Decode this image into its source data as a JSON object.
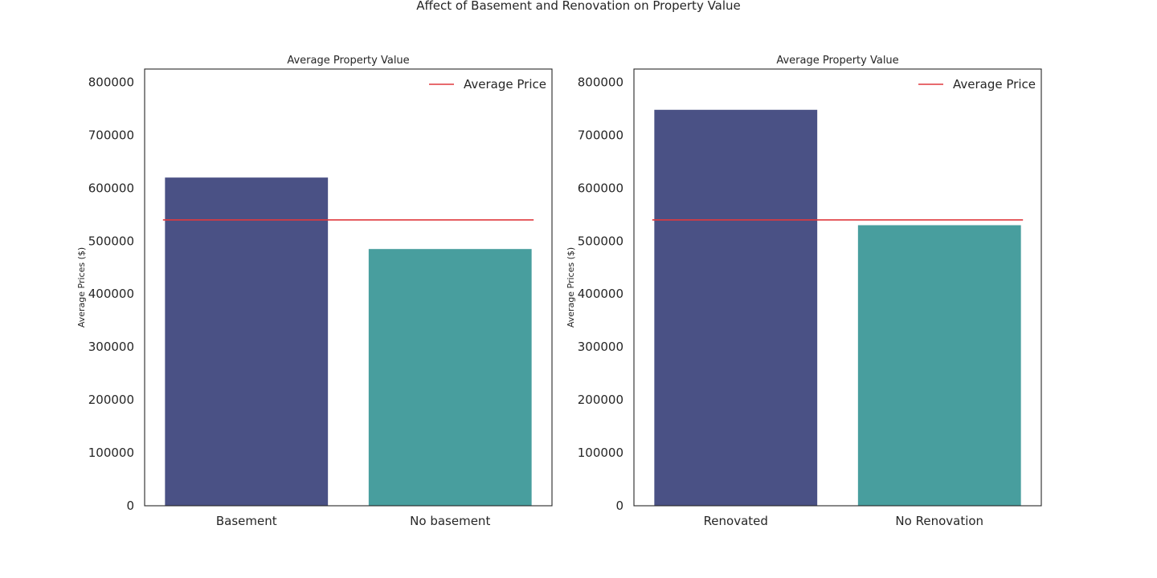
{
  "figure_title": "Affect of Basement and Renovation on Property Value",
  "chart_data": [
    {
      "type": "bar",
      "title": "Average Property Value",
      "xlabel": "",
      "ylabel": "Average Prices ($)",
      "categories": [
        "Basement",
        "No basement"
      ],
      "values": [
        620000,
        485000
      ],
      "bar_colors": [
        "#4a5185",
        "#489e9e"
      ],
      "reference_line": {
        "label": "Average Price",
        "value": 540000,
        "color": "#e0393e"
      },
      "ylim": [
        0,
        825000
      ],
      "yticks": [
        0,
        100000,
        200000,
        300000,
        400000,
        500000,
        600000,
        700000,
        800000
      ],
      "ytick_labels": [
        "0",
        "100000",
        "200000",
        "300000",
        "400000",
        "500000",
        "600000",
        "700000",
        "800000"
      ],
      "grid": false,
      "legend_position": "top-right"
    },
    {
      "type": "bar",
      "title": "Average Property Value",
      "xlabel": "",
      "ylabel": "Average Prices ($)",
      "categories": [
        "Renovated",
        "No Renovation"
      ],
      "values": [
        748000,
        530000
      ],
      "bar_colors": [
        "#4a5185",
        "#489e9e"
      ],
      "reference_line": {
        "label": "Average Price",
        "value": 540000,
        "color": "#e0393e"
      },
      "ylim": [
        0,
        825000
      ],
      "yticks": [
        0,
        100000,
        200000,
        300000,
        400000,
        500000,
        600000,
        700000,
        800000
      ],
      "ytick_labels": [
        "0",
        "100000",
        "200000",
        "300000",
        "400000",
        "500000",
        "600000",
        "700000",
        "800000"
      ],
      "grid": false,
      "legend_position": "top-right"
    }
  ]
}
